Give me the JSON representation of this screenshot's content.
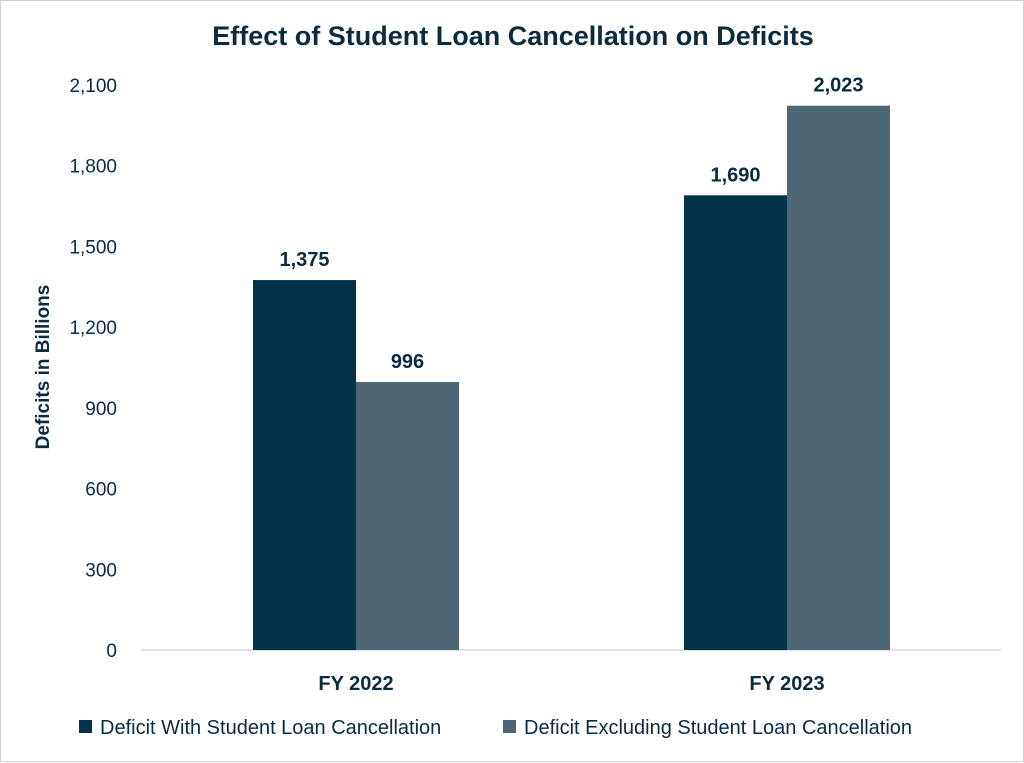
{
  "chart_data": {
    "type": "bar",
    "title": "Effect of Student Loan Cancellation on Deficits",
    "xlabel": "",
    "ylabel": "Deficits in Billions",
    "categories": [
      "FY 2022",
      "FY 2023"
    ],
    "series": [
      {
        "name": "Deficit With Student Loan Cancellation",
        "values": [
          1375,
          1690
        ],
        "color": "#04324a"
      },
      {
        "name": "Deficit Excluding Student Loan Cancellation",
        "values": [
          996,
          2023
        ],
        "color": "#4d6775"
      }
    ],
    "data_labels": [
      [
        "1,375",
        "1,690"
      ],
      [
        "996",
        "2,023"
      ]
    ],
    "ylim": [
      0,
      2100
    ],
    "yticks": [
      0,
      300,
      600,
      900,
      1200,
      1500,
      1800,
      2100
    ],
    "ytick_labels": [
      "0",
      "300",
      "600",
      "900",
      "1,200",
      "1,500",
      "1,800",
      "2,100"
    ],
    "grid": false,
    "legend_position": "bottom"
  }
}
